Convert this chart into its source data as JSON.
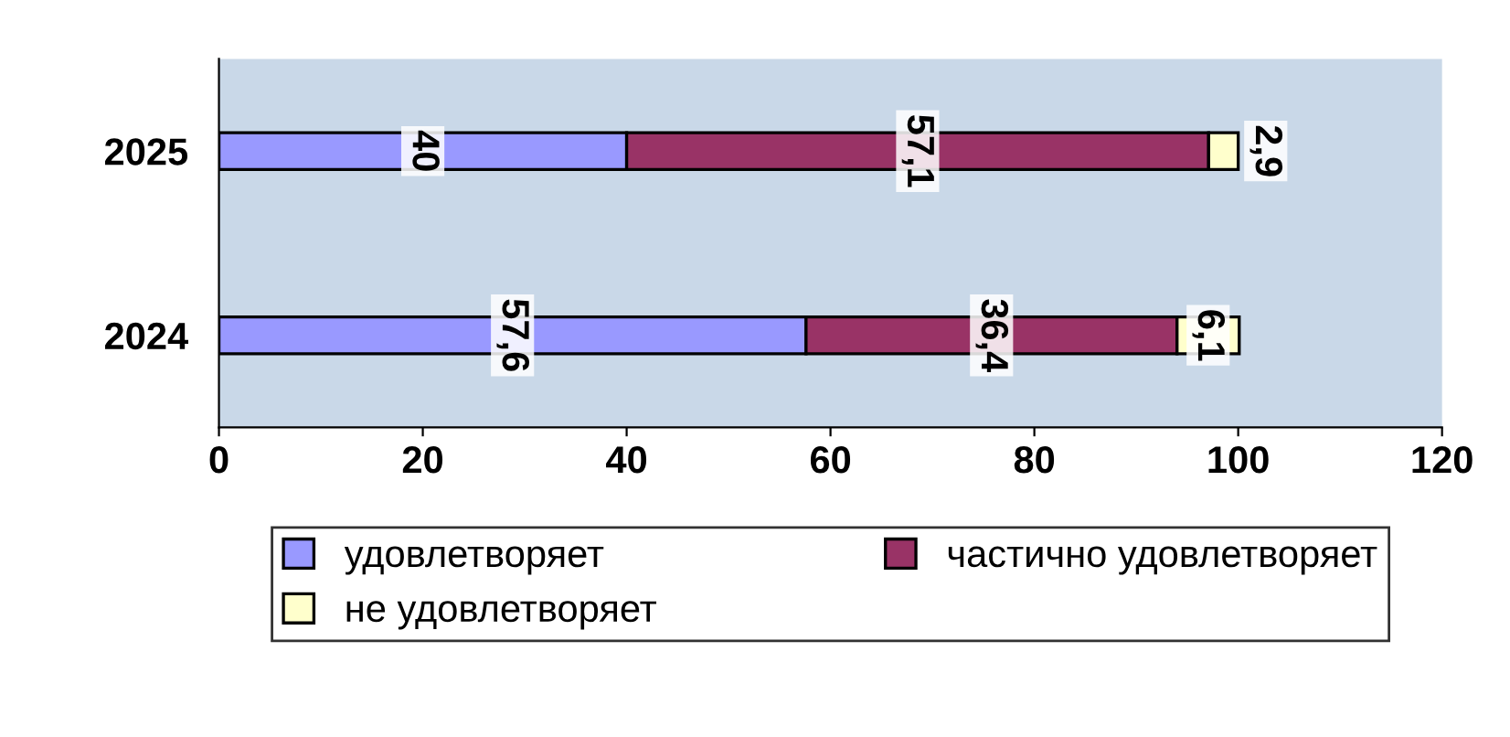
{
  "chart_data": {
    "type": "bar",
    "orientation": "horizontal",
    "stacked": true,
    "categories": [
      "2025",
      "2024"
    ],
    "series": [
      {
        "name": "удовлетворяет",
        "color": "#9999ff",
        "values": [
          40,
          57.6
        ],
        "value_labels": [
          "40",
          "57,6"
        ]
      },
      {
        "name": "частично удовлетворяет",
        "color": "#993366",
        "values": [
          57.1,
          36.4
        ],
        "value_labels": [
          "57,1",
          "36,4"
        ]
      },
      {
        "name": "не удовлетворяет",
        "color": "#ffffcc",
        "values": [
          2.9,
          6.1
        ],
        "value_labels": [
          "2,9",
          "6,1"
        ]
      }
    ],
    "xlim": [
      0,
      120
    ],
    "xticks": [
      0,
      20,
      40,
      60,
      80,
      100,
      120
    ],
    "grid": false,
    "legend": "bottom"
  }
}
